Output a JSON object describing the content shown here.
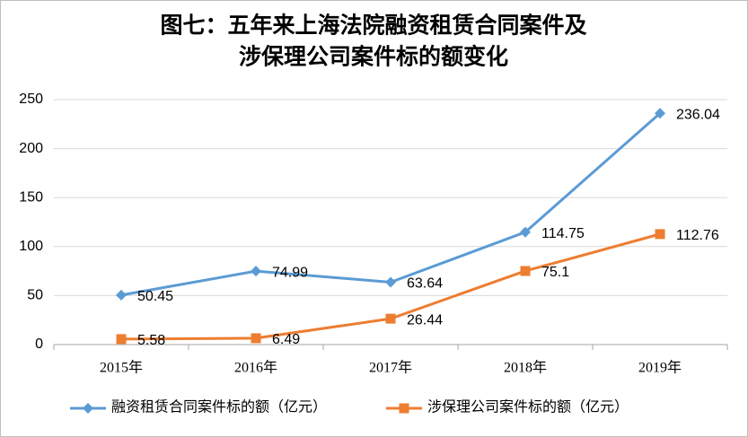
{
  "chart_data": {
    "type": "line",
    "title": [
      "图七：五年来上海法院融资租赁合同案件及",
      "涉保理公司案件标的额变化"
    ],
    "categories": [
      "2015年",
      "2016年",
      "2017年",
      "2018年",
      "2019年"
    ],
    "series": [
      {
        "name": "融资租赁合同案件标的额（亿元）",
        "color": "#5b9bd5",
        "marker": "diamond",
        "values": [
          50.45,
          74.99,
          63.64,
          114.75,
          236.04
        ]
      },
      {
        "name": "涉保理公司案件标的额（亿元）",
        "color": "#ed7d31",
        "marker": "square",
        "values": [
          5.58,
          6.49,
          26.44,
          75.1,
          112.76
        ]
      }
    ],
    "ylim": [
      0,
      250
    ],
    "yticks": [
      0,
      50,
      100,
      150,
      200,
      250
    ],
    "grid": true,
    "legend": "bottom"
  }
}
